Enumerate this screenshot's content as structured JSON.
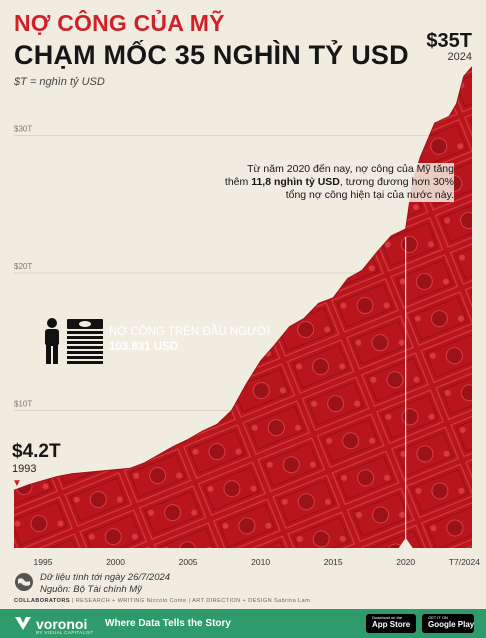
{
  "header": {
    "title_line1": "NỢ CÔNG CỦA MỸ",
    "title_line2": "CHẠM MỐC 35 NGHÌN TỶ USD",
    "unit_note": "$T = nghìn tỷ USD",
    "end_value": "$35T",
    "end_year": "2024"
  },
  "annotation": {
    "text_before": "Từ năm 2020 đến nay, nợ công của Mỹ tăng thêm ",
    "text_bold": "11,8 nghìn tỷ USD",
    "text_after": ", tương đương hơn 30% tổng nợ công hiện tại của nước này."
  },
  "start_marker": {
    "value": "$4.2T",
    "year": "1993"
  },
  "per_capita": {
    "label": "NỢ CÔNG TRÊN ĐẦU NGƯỜI",
    "value": "103.831 USD"
  },
  "notes": {
    "data_date": "Dữ liệu tính tới ngày 26/7/2024",
    "source": "Nguồn: Bộ Tài chính Mỹ"
  },
  "credits": {
    "collaborators": "COLLABORATORS",
    "research_role": "RESEARCH + WRITING",
    "research_name": "Niccolo Conte",
    "design_role": "ART DIRECTION + DESIGN",
    "design_name": "Sabrina Lam"
  },
  "footer": {
    "brand": "voronoi",
    "brand_sub": "BY VISUAL CAPITALIST",
    "tagline": "Where Data Tells the Story",
    "app_store_small": "Download on the",
    "app_store": "App Store",
    "google_play_small": "GET IT ON",
    "google_play": "Google Play"
  },
  "colors": {
    "accent": "#d0202a",
    "area": "#b8151c",
    "footer": "#2f9a6a",
    "background": "#f1ece0"
  },
  "chart_data": {
    "type": "area",
    "x_tick_labels": [
      "1995",
      "2000",
      "2005",
      "2010",
      "2015",
      "2020",
      "T7/2024"
    ],
    "x_tick_values": [
      1995,
      2000,
      2005,
      2010,
      2015,
      2020,
      2024.57
    ],
    "y_tick_labels": [
      "$10T",
      "$20T",
      "$30T"
    ],
    "y_tick_values": [
      10,
      20,
      30
    ],
    "xlim": [
      1993,
      2024.57
    ],
    "ylim": [
      0,
      36
    ],
    "grid": true,
    "series": [
      {
        "x": [
          1993,
          1994,
          1995,
          1996,
          1997,
          1998,
          1999,
          2000,
          2001,
          2002,
          2003,
          2004,
          2005,
          2006,
          2007,
          2008,
          2009,
          2010,
          2011,
          2012,
          2013,
          2014,
          2015,
          2016,
          2017,
          2018,
          2019,
          2020,
          2020.25,
          2020.5,
          2021,
          2022,
          2023,
          2023.5,
          2024,
          2024.57
        ],
        "values": [
          4.2,
          4.6,
          4.9,
          5.2,
          5.4,
          5.5,
          5.6,
          5.7,
          5.8,
          6.2,
          6.8,
          7.4,
          7.9,
          8.5,
          9.0,
          10.0,
          11.9,
          13.6,
          14.8,
          16.1,
          16.7,
          17.8,
          18.2,
          19.6,
          20.2,
          21.5,
          22.7,
          23.2,
          25.0,
          26.7,
          28.4,
          30.9,
          31.4,
          32.3,
          34.3,
          35.0
        ]
      }
    ]
  }
}
